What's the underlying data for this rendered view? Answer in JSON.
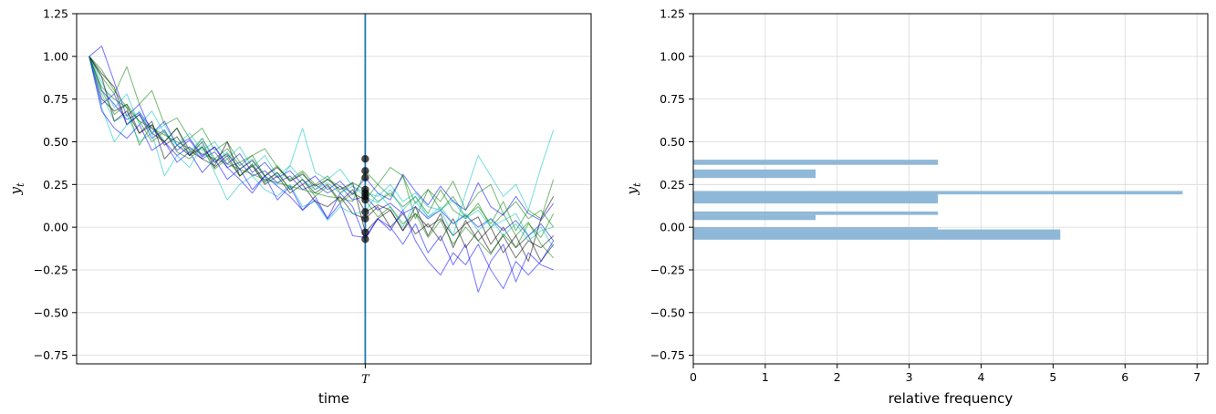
{
  "chart_data": [
    {
      "type": "line",
      "title": "",
      "xlabel": "time",
      "ylabel": "y_t",
      "ylim": [
        -0.8,
        1.25
      ],
      "yticks": [
        "1.25",
        "1.00",
        "0.75",
        "0.50",
        "0.25",
        "0.00",
        "−0.25",
        "−0.50",
        "−0.75"
      ],
      "ytick_values": [
        1.25,
        1.0,
        0.75,
        0.5,
        0.25,
        0.0,
        -0.25,
        -0.5,
        -0.75
      ],
      "xlim": [
        -1,
        40
      ],
      "xtick_label": "T",
      "T": 22,
      "grid": "horizontal",
      "vline_color": "#1f77b4",
      "series_colors": [
        "#0000ff",
        "#008000",
        "#000000",
        "#00c0c0"
      ],
      "endpoint_color": "#000000",
      "endpoints": [
        0.4,
        0.33,
        0.29,
        0.22,
        0.2,
        0.18,
        0.16,
        0.09,
        0.05,
        -0.03,
        -0.07
      ],
      "series": [
        {
          "values": [
            1.0,
            0.8,
            0.72,
            0.63,
            0.67,
            0.58,
            0.5,
            0.42,
            0.47,
            0.4,
            0.44,
            0.35,
            0.38,
            0.3,
            0.33,
            0.26,
            0.3,
            0.22,
            0.25,
            0.2,
            0.24,
            0.16,
            0.18,
            0.1,
            0.14,
            0.08,
            0.12,
            0.05,
            0.1,
            0.02,
            0.07,
            0.0,
            0.05,
            -0.02,
            0.04,
            -0.05,
            0.02,
            -0.08
          ]
        },
        {
          "values": [
            1.0,
            0.88,
            0.78,
            0.94,
            0.72,
            0.8,
            0.6,
            0.64,
            0.52,
            0.58,
            0.45,
            0.5,
            0.38,
            0.42,
            0.46,
            0.35,
            0.28,
            0.33,
            0.25,
            0.3,
            0.2,
            0.26,
            0.22,
            0.15,
            0.2,
            0.12,
            0.18,
            0.08,
            0.22,
            0.1,
            0.05,
            0.14,
            0.0,
            0.08,
            -0.05,
            0.03,
            -0.1,
            -0.18
          ]
        },
        {
          "values": [
            1.0,
            0.75,
            0.68,
            0.72,
            0.55,
            0.62,
            0.4,
            0.48,
            0.42,
            0.5,
            0.35,
            0.42,
            0.3,
            0.37,
            0.27,
            0.32,
            0.22,
            0.28,
            0.2,
            0.25,
            0.15,
            0.22,
            0.09,
            0.13,
            0.1,
            -0.02,
            0.08,
            0.0,
            0.05,
            -0.05,
            0.02,
            0.06,
            -0.1,
            0.0,
            -0.12,
            -0.05,
            -0.2,
            -0.1
          ]
        },
        {
          "values": [
            1.0,
            0.85,
            0.7,
            0.78,
            0.6,
            0.68,
            0.55,
            0.48,
            0.55,
            0.45,
            0.5,
            0.4,
            0.47,
            0.35,
            0.42,
            0.3,
            0.36,
            0.58,
            0.32,
            0.28,
            0.34,
            0.24,
            0.2,
            0.18,
            0.25,
            0.15,
            0.2,
            0.12,
            0.1,
            0.16,
            0.05,
            0.1,
            0.0,
            0.04,
            0.08,
            -0.05,
            0.0,
            -0.12
          ]
        },
        {
          "values": [
            1.0,
            1.06,
            0.85,
            0.65,
            0.72,
            0.55,
            0.62,
            0.48,
            0.52,
            0.42,
            0.47,
            0.35,
            0.28,
            0.2,
            0.3,
            0.24,
            0.18,
            0.1,
            0.16,
            0.05,
            0.2,
            0.12,
            -0.07,
            0.05,
            0.0,
            -0.1,
            0.02,
            -0.15,
            -0.05,
            -0.22,
            -0.1,
            -0.38,
            -0.2,
            -0.1,
            -0.32,
            -0.15,
            -0.22,
            -0.25
          ]
        },
        {
          "values": [
            1.0,
            0.92,
            0.8,
            0.7,
            0.48,
            0.6,
            0.5,
            0.58,
            0.42,
            0.52,
            0.4,
            0.46,
            0.36,
            0.42,
            0.3,
            0.36,
            0.27,
            0.32,
            0.22,
            0.28,
            0.24,
            0.2,
            0.16,
            0.25,
            0.18,
            0.3,
            0.14,
            0.22,
            0.1,
            0.18,
            0.06,
            0.12,
            0.02,
            0.15,
            -0.02,
            0.1,
            0.05,
            0.28
          ]
        },
        {
          "values": [
            1.0,
            0.9,
            0.82,
            0.6,
            0.66,
            0.55,
            0.5,
            0.58,
            0.45,
            0.4,
            0.36,
            0.5,
            0.3,
            0.36,
            0.25,
            0.3,
            0.2,
            0.25,
            0.15,
            0.12,
            0.18,
            0.08,
            0.05,
            0.12,
            0.0,
            0.08,
            -0.04,
            0.02,
            -0.08,
            0.05,
            -0.12,
            -0.02,
            -0.15,
            -0.05,
            -0.18,
            -0.08,
            -0.12,
            -0.05
          ]
        },
        {
          "values": [
            1.0,
            0.78,
            0.62,
            0.66,
            0.5,
            0.55,
            0.6,
            0.48,
            0.44,
            0.52,
            0.38,
            0.44,
            0.34,
            0.4,
            0.3,
            0.25,
            0.36,
            0.28,
            0.22,
            0.26,
            0.2,
            0.24,
            0.18,
            0.14,
            0.22,
            0.1,
            0.18,
            0.06,
            0.12,
            0.02,
            0.08,
            -0.02,
            0.05,
            -0.05,
            0.02,
            -0.08,
            -0.02,
            0.0
          ]
        },
        {
          "values": [
            1.0,
            0.72,
            0.78,
            0.6,
            0.66,
            0.52,
            0.57,
            0.45,
            0.51,
            0.41,
            0.47,
            0.37,
            0.43,
            0.32,
            0.38,
            0.29,
            0.33,
            0.25,
            0.3,
            0.22,
            0.27,
            0.19,
            0.29,
            0.2,
            0.16,
            0.31,
            0.21,
            0.13,
            0.24,
            0.15,
            0.1,
            0.26,
            0.12,
            0.07,
            0.18,
            0.08,
            0.04,
            0.14
          ]
        },
        {
          "values": [
            1.0,
            0.82,
            0.75,
            0.7,
            0.62,
            0.58,
            0.54,
            0.5,
            0.46,
            0.43,
            0.4,
            0.37,
            0.34,
            0.31,
            0.28,
            0.26,
            0.24,
            0.22,
            0.2,
            0.18,
            0.17,
            0.15,
            0.33,
            0.25,
            0.35,
            0.3,
            0.05,
            0.22,
            0.15,
            0.27,
            0.1,
            0.2,
            0.25,
            0.08,
            0.15,
            0.05,
            0.1,
            0.0
          ]
        },
        {
          "values": [
            1.0,
            0.88,
            0.62,
            0.68,
            0.55,
            0.6,
            0.48,
            0.53,
            0.42,
            0.47,
            0.38,
            0.43,
            0.34,
            0.39,
            0.3,
            0.35,
            0.27,
            0.31,
            0.24,
            0.28,
            0.22,
            0.26,
            -0.03,
            0.05,
            0.1,
            -0.02,
            0.12,
            -0.05,
            0.08,
            -0.12,
            0.04,
            -0.08,
            0.0,
            -0.15,
            -0.05,
            -0.2,
            0.05,
            0.18
          ]
        },
        {
          "values": [
            1.0,
            0.7,
            0.5,
            0.6,
            0.68,
            0.55,
            0.3,
            0.42,
            0.35,
            0.48,
            0.32,
            0.16,
            0.25,
            0.3,
            0.22,
            0.18,
            0.25,
            0.12,
            0.15,
            0.04,
            0.12,
            0.08,
            0.09,
            0.2,
            0.12,
            0.0,
            0.15,
            0.06,
            0.1,
            -0.05,
            0.2,
            0.42,
            0.3,
            0.18,
            0.25,
            0.1,
            0.35,
            0.57
          ]
        },
        {
          "values": [
            1.0,
            0.68,
            0.58,
            0.52,
            0.6,
            0.45,
            0.5,
            0.38,
            0.44,
            0.32,
            0.4,
            0.28,
            0.34,
            0.22,
            0.3,
            0.16,
            0.24,
            0.1,
            0.18,
            0.05,
            0.14,
            -0.05,
            -0.06,
            0.05,
            -0.02,
            0.1,
            -0.08,
            -0.2,
            -0.28,
            -0.15,
            -0.22,
            -0.1,
            -0.25,
            -0.36,
            -0.2,
            -0.28,
            -0.2,
            -0.08
          ]
        },
        {
          "values": [
            1.0,
            0.8,
            0.66,
            0.72,
            0.62,
            0.5,
            0.56,
            0.44,
            0.4,
            0.47,
            0.34,
            0.4,
            0.3,
            0.36,
            0.26,
            0.32,
            0.22,
            0.28,
            0.18,
            0.24,
            0.14,
            0.2,
            0.16,
            0.06,
            0.12,
            0.02,
            0.08,
            -0.06,
            0.04,
            -0.1,
            0.0,
            -0.08,
            -0.16,
            -0.04,
            -0.12,
            0.02,
            -0.06,
            0.08
          ]
        }
      ]
    },
    {
      "type": "bar",
      "orientation": "horizontal",
      "title": "",
      "xlabel": "relative frequency",
      "ylabel": "y_t",
      "ylim": [
        -0.8,
        1.25
      ],
      "xlim": [
        0,
        7.15
      ],
      "yticks": [
        "1.25",
        "1.00",
        "0.75",
        "0.50",
        "0.25",
        "0.00",
        "−0.25",
        "−0.50",
        "−0.75"
      ],
      "ytick_values": [
        1.25,
        1.0,
        0.75,
        0.5,
        0.25,
        0.0,
        -0.25,
        -0.5,
        -0.75
      ],
      "xticks": [
        "0",
        "1",
        "2",
        "3",
        "4",
        "5",
        "6",
        "7"
      ],
      "xtick_values": [
        0,
        1,
        2,
        3,
        4,
        5,
        6,
        7
      ],
      "grid": "both",
      "bar_color": "#8fb8d8",
      "bars": [
        {
          "y0": 0.365,
          "y1": 0.395,
          "value": 3.4
        },
        {
          "y0": 0.288,
          "y1": 0.338,
          "value": 1.7
        },
        {
          "y0": 0.192,
          "y1": 0.212,
          "value": 6.8
        },
        {
          "y0": 0.139,
          "y1": 0.199,
          "value": 3.4
        },
        {
          "y0": 0.072,
          "y1": 0.092,
          "value": 3.4
        },
        {
          "y0": 0.042,
          "y1": 0.072,
          "value": 1.7
        },
        {
          "y0": -0.013,
          "y1": 0.0,
          "value": 3.4
        },
        {
          "y0": -0.073,
          "y1": -0.013,
          "value": 5.1
        }
      ]
    }
  ]
}
